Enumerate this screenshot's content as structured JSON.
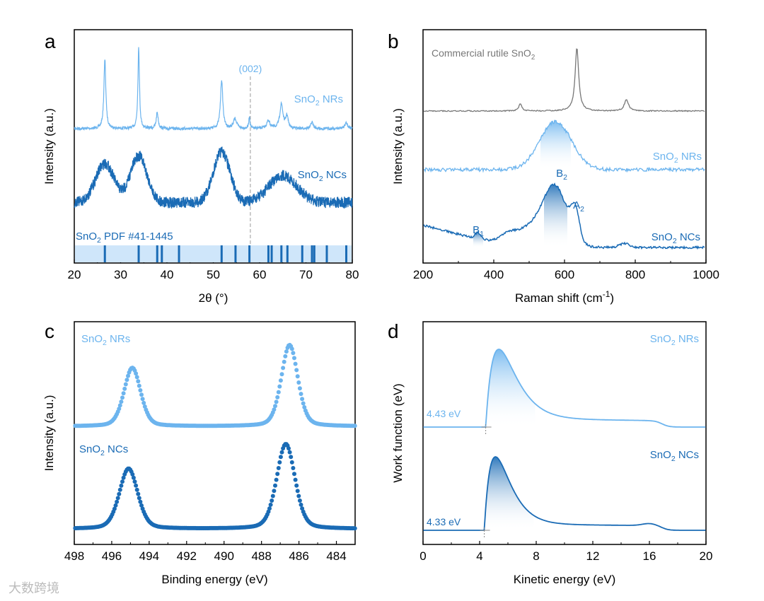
{
  "colors": {
    "light": "#6cb4ee",
    "dark": "#1a6bb5",
    "gray": "#777777",
    "band": "#cfe6fa"
  },
  "watermark": "大数跨境",
  "chart_data": [
    {
      "panel": "a",
      "type": "line",
      "xlabel": "2θ (°)",
      "ylabel": "Intensity (a.u.)",
      "xlim": [
        20,
        80
      ],
      "xticks": [
        "20",
        "30",
        "40",
        "50",
        "60",
        "70",
        "80"
      ],
      "annotation": "(002)",
      "annotation_x": 58,
      "series": [
        {
          "name": "SnO2 NRs",
          "label": {
            "pre": "SnO",
            "sub": "2",
            "post": " NRs"
          },
          "peaks": [
            [
              26.6,
              0.85,
              0.25
            ],
            [
              33.9,
              1.0,
              0.2
            ],
            [
              37.9,
              0.2,
              0.25
            ],
            [
              51.8,
              0.6,
              0.3
            ],
            [
              54.7,
              0.12,
              0.4
            ],
            [
              57.8,
              0.15,
              0.15
            ],
            [
              61.9,
              0.1,
              0.4
            ],
            [
              64.7,
              0.3,
              0.4
            ],
            [
              65.9,
              0.15,
              0.3
            ],
            [
              71.3,
              0.08,
              0.3
            ],
            [
              78.7,
              0.07,
              0.4
            ]
          ]
        },
        {
          "name": "SnO2 NCs",
          "label": {
            "pre": "SnO",
            "sub": "2",
            "post": " NCs"
          },
          "peaks": [
            [
              26.6,
              0.5,
              2
            ],
            [
              33.9,
              0.6,
              1.8
            ],
            [
              51.8,
              0.65,
              1.8
            ],
            [
              65,
              0.35,
              3
            ]
          ]
        }
      ],
      "reference": {
        "label": {
          "pre": "SnO",
          "sub": "2",
          "post": " PDF #41-1445"
        },
        "lines": [
          26.6,
          33.9,
          37.9,
          38.9,
          42.6,
          51.8,
          54.8,
          57.8,
          61.9,
          62.6,
          64.7,
          66.0,
          69.2,
          71.3,
          71.8,
          74.5,
          78.7
        ]
      }
    },
    {
      "panel": "b",
      "type": "line",
      "xlabel": "Raman shift (cm",
      "xlabel_sup": "-1",
      "xlabel_end": ")",
      "ylabel": "Intensity (a.u.)",
      "xlim": [
        200,
        1000
      ],
      "xticks": [
        "200",
        "400",
        "600",
        "800",
        "1000"
      ],
      "series": [
        {
          "name": "Commercial rutile SnO2",
          "label": {
            "pre": "Commercial rutile SnO",
            "sub": "2",
            "post": ""
          },
          "peaks": [
            [
              475,
              0.12,
              5
            ],
            [
              635,
              1,
              6
            ],
            [
              775,
              0.18,
              7
            ]
          ]
        },
        {
          "name": "SnO2 NRs",
          "label": {
            "pre": "SnO",
            "sub": "2",
            "post": " NRs"
          },
          "peaks": [
            [
              575,
              1,
              45
            ]
          ]
        },
        {
          "name": "SnO2 NCs",
          "label": {
            "pre": "SnO",
            "sub": "2",
            "post": " NCs"
          },
          "peaks": [
            [
              575,
              0.75,
              32
            ],
            [
              520,
              0.35,
              60
            ],
            [
              630,
              0.45,
              12
            ],
            [
              355,
              0.1,
              8
            ],
            [
              440,
              0.1,
              20
            ],
            [
              770,
              0.06,
              15
            ]
          ]
        }
      ],
      "modes": [
        {
          "pre": "B",
          "sub": "1",
          "x": 355
        },
        {
          "pre": "B",
          "sub": "2",
          "x": 575
        },
        {
          "pre": "A",
          "sub": "2",
          "x": 630
        }
      ]
    },
    {
      "panel": "c",
      "type": "scatter",
      "xlabel": "Binding energy (eV)",
      "ylabel": "Intensity (a.u.)",
      "xlim": [
        498,
        483
      ],
      "xticks": [
        "498",
        "496",
        "494",
        "492",
        "490",
        "488",
        "486",
        "484"
      ],
      "series": [
        {
          "name": "SnO2 NRs",
          "label": {
            "pre": "SnO",
            "sub": "2",
            "post": " NRs"
          },
          "peaks": [
            [
              494.9,
              0.72,
              0.45
            ],
            [
              486.5,
              1,
              0.45
            ]
          ]
        },
        {
          "name": "SnO2 NCs",
          "label": {
            "pre": "SnO",
            "sub": "2",
            "post": " NCs"
          },
          "peaks": [
            [
              495.1,
              0.71,
              0.5
            ],
            [
              486.7,
              1,
              0.5
            ]
          ]
        }
      ]
    },
    {
      "panel": "d",
      "type": "line",
      "xlabel": "Kinetic energy (eV)",
      "ylabel": "Work function (eV)",
      "xlim": [
        0,
        20
      ],
      "xticks": [
        "0",
        "4",
        "8",
        "12",
        "16",
        "20"
      ],
      "series": [
        {
          "name": "SnO2 NRs",
          "label": {
            "pre": "SnO",
            "sub": "2",
            "post": " NRs"
          },
          "onset": 4.43,
          "onset_label": "4.43 eV",
          "peak": 5.33
        },
        {
          "name": "SnO2 NCs",
          "label": {
            "pre": "SnO",
            "sub": "2",
            "post": " NCs"
          },
          "onset": 4.33,
          "onset_label": "4.33 eV",
          "peak": 5.1
        }
      ]
    }
  ]
}
